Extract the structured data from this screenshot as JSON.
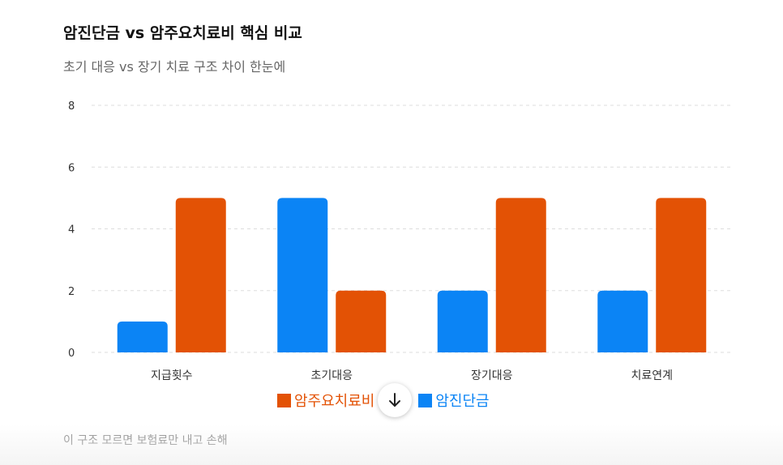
{
  "header": {
    "title": "암진단금 vs 암주요치료비 핵심 비교",
    "subtitle": "초기 대응 vs 장기 치료 구조 차이 한눈에"
  },
  "footer": {
    "note": "이 구조 모르면 보험료만 내고 손해"
  },
  "scroll_button": {
    "icon": "arrow-down-icon"
  },
  "colors": {
    "series_treatment": "#E35205",
    "series_diagnosis": "#0B84F5",
    "grid": "#DDDDDD",
    "tick_text": "#333333"
  },
  "chart_data": {
    "type": "bar",
    "categories": [
      "지급횟수",
      "초기대응",
      "장기대응",
      "치료연계"
    ],
    "series": [
      {
        "name": "암진단금",
        "values": [
          1,
          5,
          2,
          2
        ],
        "color": "#0B84F5"
      },
      {
        "name": "암주요치료비",
        "values": [
          5,
          2,
          5,
          5
        ],
        "color": "#E35205"
      }
    ],
    "legend": [
      {
        "name": "암주요치료비",
        "color": "#E35205"
      },
      {
        "name": "암진단금",
        "color": "#0B84F5"
      }
    ],
    "yticks": [
      0,
      2,
      4,
      6,
      8
    ],
    "ylim": [
      0,
      8
    ],
    "grid": true,
    "legend_position": "bottom-center"
  }
}
